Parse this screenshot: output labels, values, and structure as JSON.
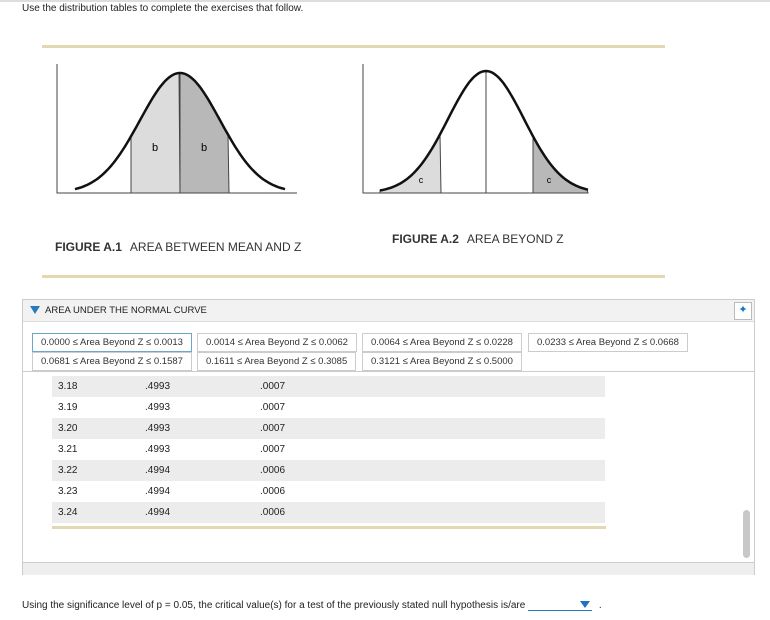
{
  "instruction": "Use the distribution tables to complete the exercises that follow.",
  "figures": [
    {
      "number": "FIGURE A.1",
      "caption": "AREA BETWEEN MEAN AND Z",
      "region_labels": [
        "b",
        "b"
      ]
    },
    {
      "number": "FIGURE A.2",
      "caption": "AREA BEYOND Z",
      "region_labels": [
        "c",
        "c"
      ]
    }
  ],
  "panel": {
    "title": "AREA UNDER THE NORMAL CURVE",
    "tabs": [
      "0.0000 ≤ Area Beyond Z ≤ 0.0013",
      "0.0014 ≤ Area Beyond Z ≤ 0.0062",
      "0.0064 ≤ Area Beyond Z ≤ 0.0228",
      "0.0233 ≤ Area Beyond Z ≤ 0.0668",
      "0.0681 ≤ Area Beyond Z ≤ 0.1587",
      "0.1611 ≤ Area Beyond Z ≤ 0.3085",
      "0.3121 ≤ Area Beyond Z ≤ 0.5000"
    ],
    "table": {
      "rows": [
        [
          "3.18",
          ".4993",
          ".0007"
        ],
        [
          "3.19",
          ".4993",
          ".0007"
        ],
        [
          "3.20",
          ".4993",
          ".0007"
        ],
        [
          "3.21",
          ".4993",
          ".0007"
        ],
        [
          "3.22",
          ".4994",
          ".0006"
        ],
        [
          "3.23",
          ".4994",
          ".0006"
        ],
        [
          "3.24",
          ".4994",
          ".0006"
        ]
      ]
    }
  },
  "question": {
    "text": "Using the significance level of p = 0.05, the critical value(s) for a test of the previously stated null hypothesis is/are",
    "end": "."
  }
}
